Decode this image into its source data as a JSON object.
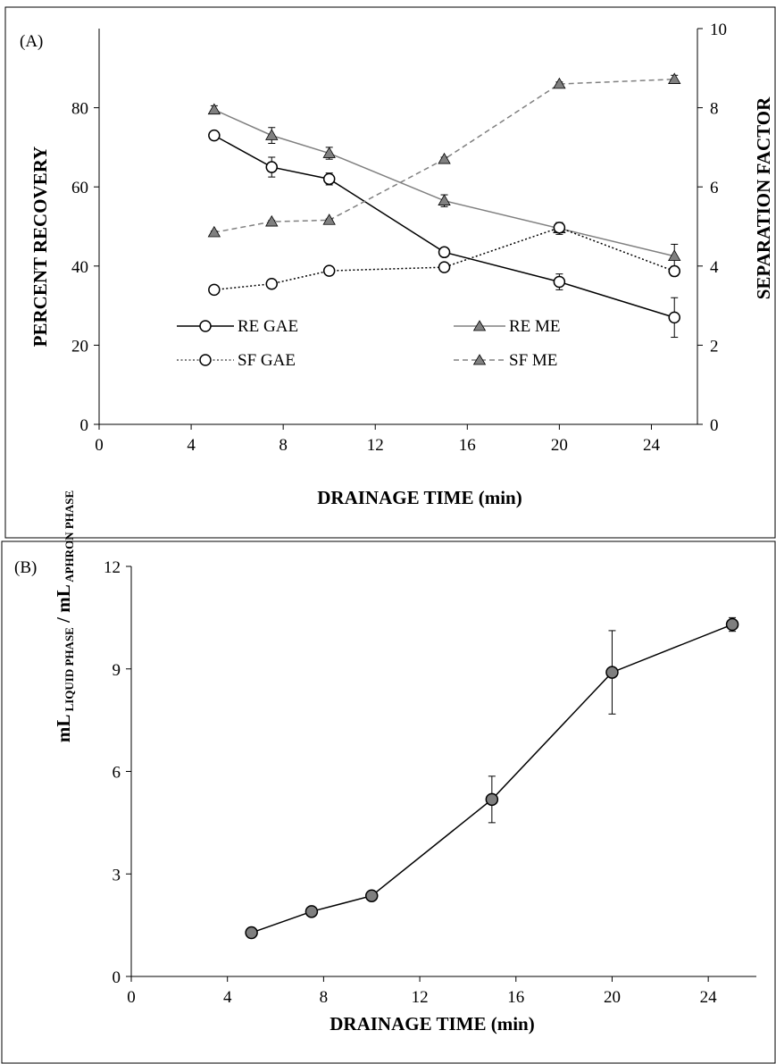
{
  "chart_data": [
    {
      "type": "line",
      "panel_label": "(A)",
      "xlabel": "DRAINAGE TIME  (min)",
      "ylabel": "PERCENT RECOVERY",
      "y2label": "SEPARATION FACTOR",
      "xlim": [
        0,
        26
      ],
      "ylim": [
        0,
        100
      ],
      "y2lim": [
        0,
        10
      ],
      "x_ticks": [
        "0",
        "4",
        "8",
        "12",
        "16",
        "20",
        "24"
      ],
      "y_ticks": [
        "0",
        "20",
        "40",
        "60",
        "80"
      ],
      "y2_ticks": [
        "0",
        "2",
        "4",
        "6",
        "8",
        "10"
      ],
      "legend_position": "bottom-left",
      "series": [
        {
          "name": "RE GAE",
          "axis": "left",
          "marker": "circle-open",
          "line": "solid",
          "color": "#000000",
          "x": [
            5,
            7.5,
            10,
            15,
            20,
            25
          ],
          "y": [
            73,
            65,
            62,
            43.5,
            36,
            27
          ],
          "err": [
            0.8,
            2.5,
            1.5,
            1.0,
            2.0,
            5.0
          ]
        },
        {
          "name": "RE ME",
          "axis": "left",
          "marker": "triangle-filled",
          "line": "solid",
          "color": "#808080",
          "x": [
            5,
            7.5,
            10,
            15,
            20,
            25
          ],
          "y": [
            79.5,
            73,
            68.5,
            56.5,
            49.5,
            42.5
          ],
          "err": [
            1.0,
            2.0,
            1.5,
            1.5,
            1.5,
            3.0
          ]
        },
        {
          "name": "SF GAE",
          "axis": "right",
          "marker": "circle-open",
          "line": "dotted",
          "color": "#000000",
          "x": [
            5,
            7.5,
            10,
            15,
            20,
            25
          ],
          "y": [
            3.4,
            3.55,
            3.88,
            3.97,
            4.97,
            3.87
          ],
          "err": [
            0.05,
            0.05,
            0.05,
            0.05,
            0.1,
            0.12
          ]
        },
        {
          "name": "SF ME",
          "axis": "right",
          "marker": "triangle-filled",
          "line": "dashed",
          "color": "#808080",
          "x": [
            5,
            7.5,
            10,
            15,
            20,
            25
          ],
          "y": [
            4.85,
            5.12,
            5.16,
            6.7,
            8.6,
            8.72
          ],
          "err": [
            0.03,
            0.03,
            0.03,
            0.05,
            0.05,
            0.1
          ]
        }
      ]
    },
    {
      "type": "line",
      "panel_label": "(B)",
      "xlabel": "DRAINAGE TIME  (min)",
      "ylabel_main": "mL",
      "ylabel_sub1": " LIQUID PHASE",
      "ylabel_sep": " / ",
      "ylabel_main2": "mL",
      "ylabel_sub2": " APHRON PHASE",
      "xlim": [
        0,
        26
      ],
      "ylim": [
        0,
        12
      ],
      "x_ticks": [
        "0",
        "4",
        "8",
        "12",
        "16",
        "20",
        "24"
      ],
      "y_ticks": [
        "0",
        "3",
        "6",
        "9",
        "12"
      ],
      "series": [
        {
          "marker": "circle-filled",
          "line": "solid",
          "color": "#000000",
          "x": [
            5,
            7.5,
            10,
            15,
            20,
            25
          ],
          "y": [
            1.28,
            1.9,
            2.36,
            5.18,
            8.9,
            10.3
          ],
          "err": [
            0.15,
            0.1,
            0.1,
            0.68,
            1.22,
            0.2
          ]
        }
      ]
    }
  ]
}
